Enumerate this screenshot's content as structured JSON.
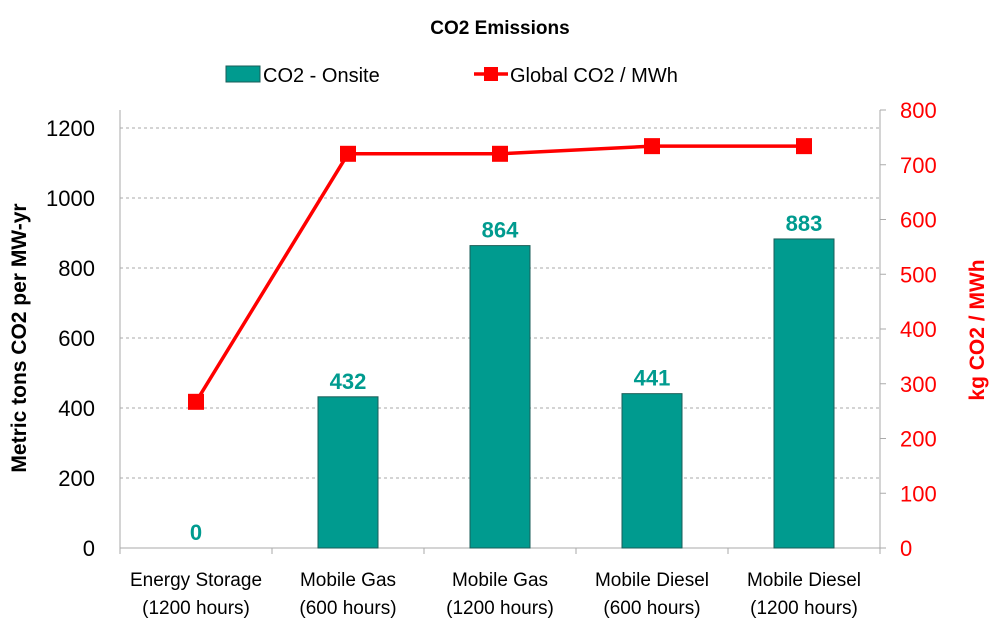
{
  "chart_data": {
    "type": "bar",
    "title": "CO2 Emissions",
    "categories": [
      [
        "Energy Storage",
        "(1200 hours)"
      ],
      [
        "Mobile Gas",
        "(600 hours)"
      ],
      [
        "Mobile Gas",
        "(1200 hours)"
      ],
      [
        "Mobile Diesel",
        "(600 hours)"
      ],
      [
        "Mobile Diesel",
        "(1200 hours)"
      ]
    ],
    "series": [
      {
        "name": "CO2 - Onsite",
        "type": "bar",
        "axis": "left",
        "values": [
          0,
          432,
          864,
          441,
          883
        ],
        "color": "#009b8f",
        "data_labels": [
          "0",
          "432",
          "864",
          "441",
          "883"
        ]
      },
      {
        "name": "Global CO2 / MWh",
        "type": "line",
        "axis": "right",
        "values": [
          267,
          720,
          720,
          734,
          734
        ],
        "color": "#ff0000"
      }
    ],
    "ylabel": "Metric tons CO2 per MW-yr",
    "y2label": "kg CO2 / MWh",
    "ylim": [
      0,
      1200
    ],
    "y2lim": [
      0,
      800
    ],
    "yticks": [
      "0",
      "200",
      "400",
      "600",
      "800",
      "1000",
      "1200"
    ],
    "y2ticks": [
      "0",
      "100",
      "200",
      "300",
      "400",
      "500",
      "600",
      "700",
      "800"
    ],
    "grid": true,
    "legend": "top-center"
  }
}
